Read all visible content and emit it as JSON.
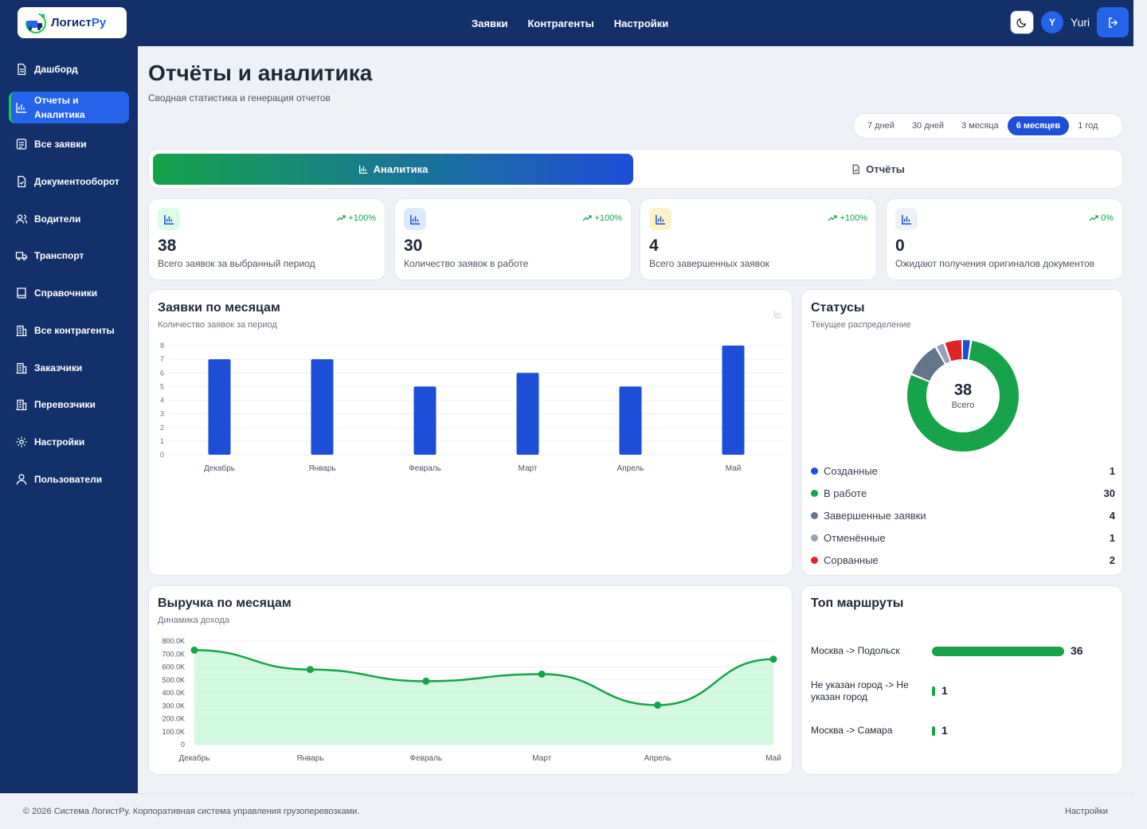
{
  "header": {
    "logo_text_main": "Логист",
    "logo_text_accent": "Ру",
    "nav": [
      "Заявки",
      "Контрагенты",
      "Настройки"
    ],
    "user_initial": "Y",
    "user_name": "Yuri",
    "icons": {
      "theme": "moon-icon",
      "logout": "logout-icon"
    }
  },
  "sidebar": {
    "items": [
      {
        "label": "Дашборд",
        "icon": "document-icon"
      },
      {
        "label": "Отчеты и Аналитика",
        "icon": "bar-chart-icon",
        "active": true
      },
      {
        "label": "Все заявки",
        "icon": "list-icon"
      },
      {
        "label": "Документооборот",
        "icon": "file-check-icon"
      },
      {
        "label": "Водители",
        "icon": "users-icon"
      },
      {
        "label": "Транспорт",
        "icon": "truck-icon"
      },
      {
        "label": "Справочники",
        "icon": "book-icon"
      },
      {
        "label": "Все контрагенты",
        "icon": "building-icon"
      },
      {
        "label": "Заказчики",
        "icon": "building-icon"
      },
      {
        "label": "Перевозчики",
        "icon": "building-icon"
      },
      {
        "label": "Настройки",
        "icon": "gear-icon"
      },
      {
        "label": "Пользователи",
        "icon": "user-icon"
      }
    ]
  },
  "page": {
    "title": "Отчёты и аналитика",
    "subtitle": "Сводная статистика и генерация отчетов"
  },
  "period": {
    "options": [
      "7 дней",
      "30 дней",
      "3 месяца",
      "6 месяцев",
      "1 год"
    ],
    "selected": "6 месяцев"
  },
  "tabs": {
    "analytics": "Аналитика",
    "reports": "Отчёты"
  },
  "kpis": [
    {
      "value": "38",
      "label": "Всего заявок за выбранный период",
      "trend": "+100%",
      "color": "#16a34a",
      "bg": "#dcfce7"
    },
    {
      "value": "30",
      "label": "Количество заявок в работе",
      "trend": "+100%",
      "color": "#1d4ed8",
      "bg": "#dbeafe"
    },
    {
      "value": "4",
      "label": "Всего завершенных заявок",
      "trend": "+100%",
      "color": "#ca8a04",
      "bg": "#fef3c7"
    },
    {
      "value": "0",
      "label": "Ожидают получения оригиналов документов",
      "trend": "0%",
      "color": "#1d4ed8",
      "bg": "#eef2f7"
    }
  ],
  "orders_chart": {
    "title": "Заявки по месяцам",
    "subtitle": "Количество заявок за период"
  },
  "revenue_chart": {
    "title": "Выручка по месяцам",
    "subtitle": "Динамика дохода"
  },
  "statuses": {
    "title": "Статусы",
    "subtitle": "Текущее распределение",
    "total": "38",
    "total_label": "Всего",
    "items": [
      {
        "label": "Созданные",
        "value": "1",
        "color": "#1d4ed8"
      },
      {
        "label": "В работе",
        "value": "30",
        "color": "#16a34a"
      },
      {
        "label": "Завершенные заявки",
        "value": "4",
        "color": "#64748b"
      },
      {
        "label": "Отменённые",
        "value": "1",
        "color": "#94a3b8"
      },
      {
        "label": "Сорванные",
        "value": "2",
        "color": "#dc2626"
      }
    ]
  },
  "routes": {
    "title": "Топ маршруты",
    "items": [
      {
        "label": "Москва -> Подольск",
        "value": "36"
      },
      {
        "label": "Не указан город -> Не указан город",
        "value": "1"
      },
      {
        "label": "Москва -> Самара",
        "value": "1"
      }
    ]
  },
  "footer": {
    "text": "© 2026 Система ЛогистРу. Корпоративная система управления грузоперевозками.",
    "link": "Настройки"
  },
  "chart_data": [
    {
      "type": "bar",
      "title": "Заявки по месяцам",
      "categories": [
        "Декабрь",
        "Январь",
        "Февраль",
        "Март",
        "Апрель",
        "Май"
      ],
      "values": [
        7,
        7,
        5,
        6,
        5,
        8
      ],
      "ylim": [
        0,
        8
      ],
      "yticks": [
        "0",
        "1",
        "2",
        "3",
        "4",
        "5",
        "6",
        "7",
        "8"
      ],
      "grid": true,
      "color": "#1d4ed8"
    },
    {
      "type": "area",
      "title": "Выручка по месяцам",
      "categories": [
        "Декабрь",
        "Январь",
        "Февраль",
        "Март",
        "Апрель",
        "Май"
      ],
      "values": [
        730000,
        580000,
        490000,
        545000,
        305000,
        660000
      ],
      "ylim": [
        0,
        800000
      ],
      "yticks": [
        "0",
        "100.0K",
        "200.0K",
        "300.0K",
        "400.0K",
        "500.0K",
        "600.0K",
        "700.0K",
        "800.0K"
      ],
      "grid": true,
      "color": "#16a34a"
    }
  ]
}
